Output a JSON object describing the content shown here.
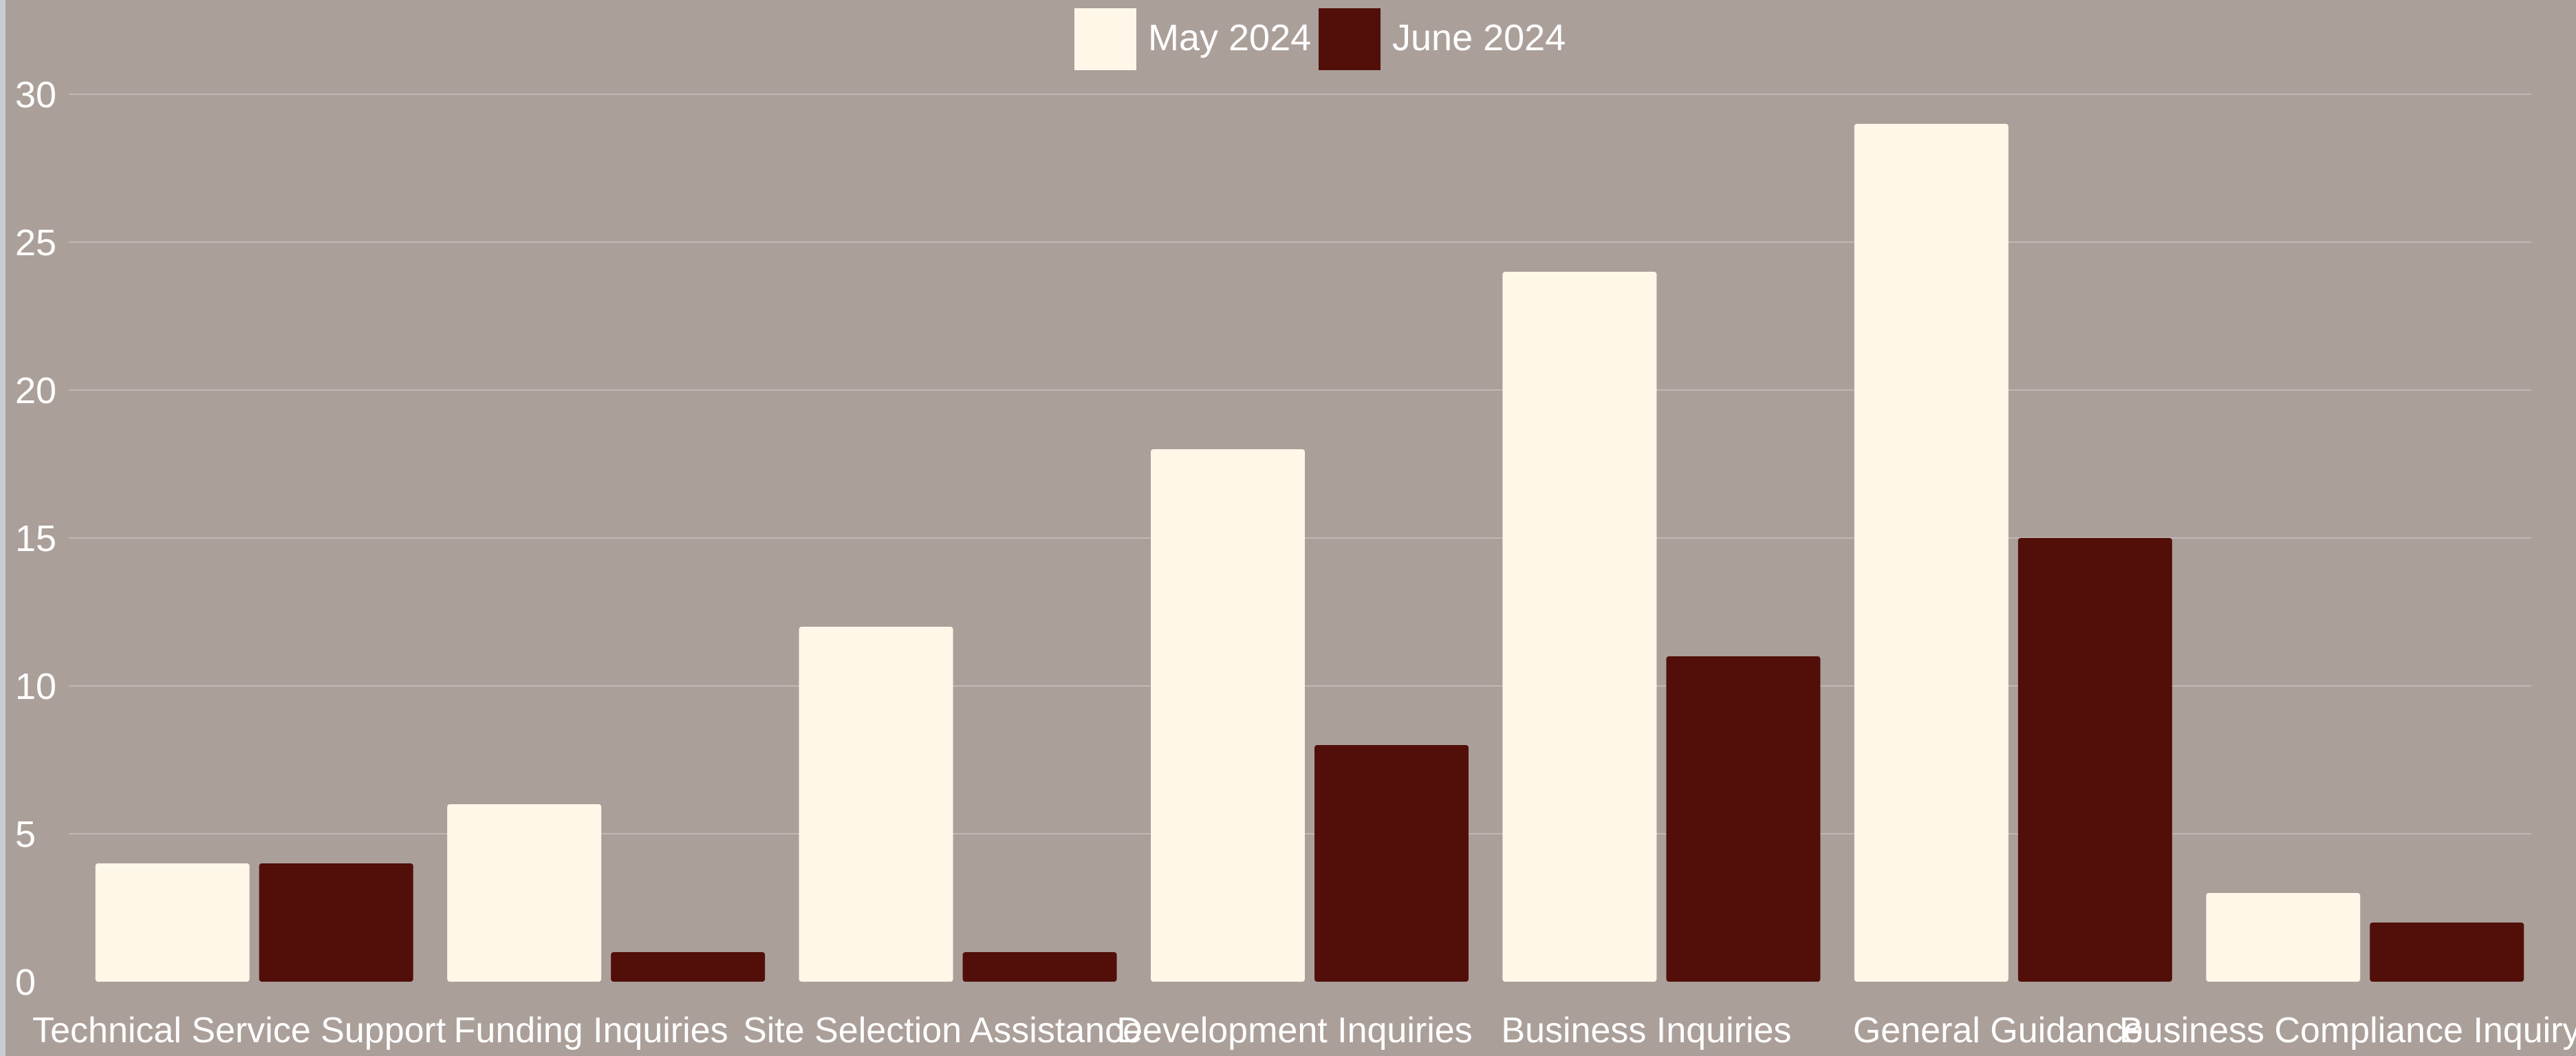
{
  "chart_data": {
    "type": "bar",
    "categories": [
      "Technical Service Support",
      "Funding Inquiries",
      "Site Selection Assistance",
      "Development Inquiries",
      "Business Inquiries",
      "General Guidance",
      "Business Compliance Inquiry"
    ],
    "series": [
      {
        "name": "May 2024",
        "color": "#fff8e9",
        "values": [
          4,
          6,
          12,
          18,
          24,
          29,
          3
        ]
      },
      {
        "name": "June 2024",
        "color": "#520f09",
        "values": [
          4,
          1,
          1,
          8,
          11,
          15,
          2
        ]
      }
    ],
    "ylim": [
      0,
      30
    ],
    "yticks": [
      0,
      5,
      10,
      15,
      20,
      25,
      30
    ],
    "grid": true,
    "legend": "top-center",
    "title": "",
    "xlabel": "",
    "ylabel": ""
  },
  "colors": {
    "background": "#ab9f9a",
    "gridline": "#c2b8b3",
    "text": "#ffffff"
  }
}
